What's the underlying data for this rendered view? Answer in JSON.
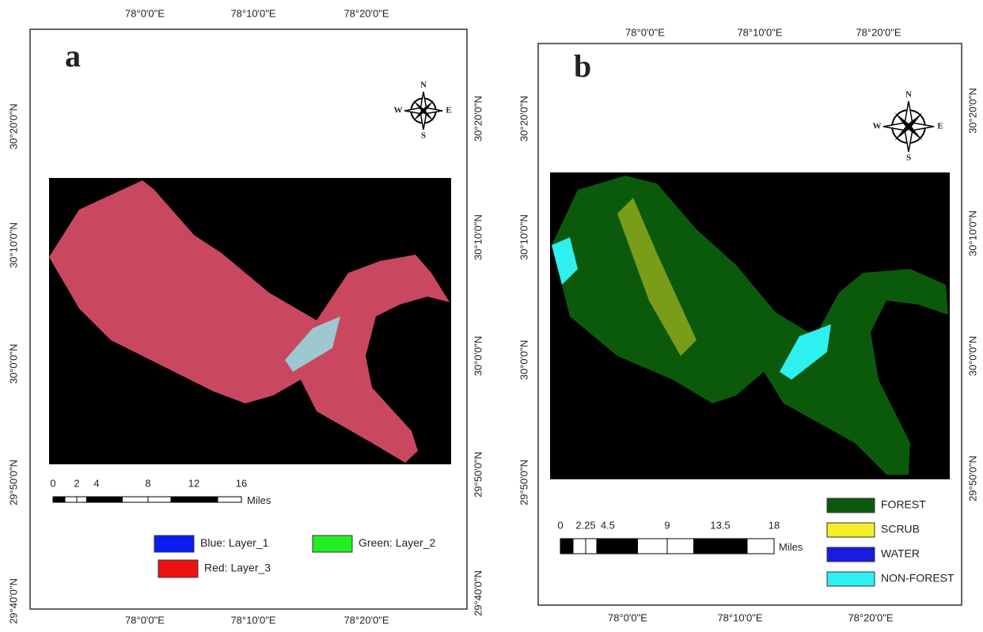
{
  "panels": [
    {
      "label": "a",
      "top_ticks": [
        "78°0'0\"E",
        "78°10'0\"E",
        "78°20'0\"E"
      ],
      "bottom_ticks": [
        "78°0'0\"E",
        "78°10'0\"E",
        "78°20'0\"E"
      ],
      "left_ticks": [
        "30°20'0\"N",
        "30°10'0\"N",
        "30°0'0\"N",
        "29°50'0\"N",
        "29°40'0\"N"
      ],
      "right_ticks": [
        "30°20'0\"N",
        "30°10'0\"N",
        "30°0'0\"N",
        "29°50'0\"N",
        "29°40'0\"N"
      ],
      "compass": {
        "n": "N",
        "e": "E",
        "s": "S",
        "w": "W"
      },
      "scale": {
        "labels": [
          "0",
          "2",
          "4",
          "8",
          "12",
          "16"
        ],
        "unit": "Miles"
      },
      "legend": [
        {
          "label": "Blue:  Layer_1",
          "color": "#0a1cf0"
        },
        {
          "label": "Green: Layer_2",
          "color": "#22ee22"
        },
        {
          "label": "Red:   Layer_3",
          "color": "#ee1111"
        }
      ]
    },
    {
      "label": "b",
      "top_ticks": [
        "78°0'0\"E",
        "78°10'0\"E",
        "78°20'0\"E"
      ],
      "bottom_ticks": [
        "78°0'0\"E",
        "78°10'0\"E",
        "78°20'0\"E"
      ],
      "left_ticks": [
        "30°20'0\"N",
        "30°10'0\"N",
        "30°0'0\"N",
        "29°50'0\"N"
      ],
      "right_ticks": [
        "30°20'0\"N",
        "30°10'0\"N",
        "30°0'0\"N",
        "29°50'0\"N"
      ],
      "compass": {
        "n": "N",
        "e": "E",
        "s": "S",
        "w": "W"
      },
      "scale": {
        "labels": [
          "0",
          "2.25",
          "4.5",
          "9",
          "13.5",
          "18"
        ],
        "unit": "Miles"
      },
      "legend": [
        {
          "label": "FOREST",
          "color": "#0b5a0b"
        },
        {
          "label": "SCRUB",
          "color": "#f2ef2a"
        },
        {
          "label": "WATER",
          "color": "#1a1ae0"
        },
        {
          "label": "NON-FOREST",
          "color": "#2ef0f0"
        }
      ]
    }
  ]
}
